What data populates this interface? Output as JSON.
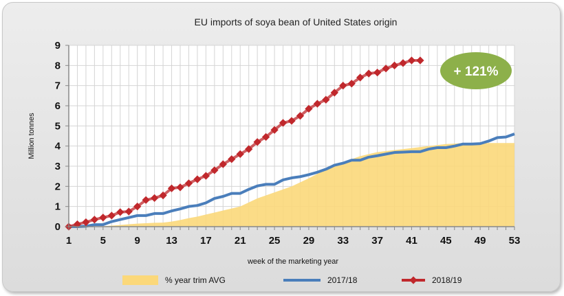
{
  "chart_data": {
    "type": "line",
    "title": "EU imports of soya bean of United States origin",
    "xlabel": "week of the marketing year",
    "ylabel": "Million tonnes",
    "xlim": [
      1,
      53
    ],
    "ylim": [
      0,
      9
    ],
    "x_ticks": [
      1,
      5,
      9,
      13,
      17,
      21,
      25,
      29,
      33,
      37,
      41,
      45,
      49,
      53
    ],
    "y_ticks": [
      0,
      1,
      2,
      3,
      4,
      5,
      6,
      7,
      8,
      9
    ],
    "grid": true,
    "legend_position": "bottom",
    "annotation": "+ 121%",
    "series": [
      {
        "name": "% year trim AVG",
        "kind": "area",
        "color": "#fbd87a",
        "values": [
          0,
          0,
          0,
          0.01,
          0.02,
          0.05,
          0.08,
          0.12,
          0.15,
          0.17,
          0.19,
          0.2,
          0.25,
          0.33,
          0.42,
          0.5,
          0.6,
          0.7,
          0.8,
          0.9,
          1.0,
          1.2,
          1.4,
          1.55,
          1.7,
          1.85,
          2.0,
          2.2,
          2.4,
          2.62,
          2.85,
          3.02,
          3.2,
          3.35,
          3.5,
          3.6,
          3.7,
          3.75,
          3.8,
          3.85,
          3.9,
          3.95,
          4.0,
          4.05,
          4.1,
          4.12,
          4.15,
          4.15,
          4.15,
          4.15,
          4.15,
          4.15,
          4.15
        ]
      },
      {
        "name": "2017/18",
        "kind": "line",
        "color": "#4a7ebb",
        "values": [
          0,
          0,
          0.02,
          0.1,
          0.1,
          0.25,
          0.35,
          0.45,
          0.55,
          0.55,
          0.65,
          0.65,
          0.78,
          0.88,
          1.0,
          1.05,
          1.18,
          1.4,
          1.5,
          1.65,
          1.65,
          1.85,
          2.02,
          2.1,
          2.1,
          2.32,
          2.42,
          2.48,
          2.58,
          2.7,
          2.85,
          3.05,
          3.15,
          3.3,
          3.3,
          3.45,
          3.52,
          3.6,
          3.68,
          3.7,
          3.72,
          3.72,
          3.85,
          3.92,
          3.92,
          4.0,
          4.1,
          4.1,
          4.12,
          4.25,
          4.42,
          4.45,
          4.6
        ]
      },
      {
        "name": "2018/19",
        "kind": "line-marker",
        "color": "#c0282c",
        "values": [
          0,
          0.12,
          0.22,
          0.35,
          0.45,
          0.55,
          0.72,
          0.75,
          1.0,
          1.32,
          1.42,
          1.55,
          1.9,
          1.95,
          2.15,
          2.35,
          2.52,
          2.8,
          3.1,
          3.35,
          3.6,
          3.85,
          4.2,
          4.45,
          4.8,
          5.15,
          5.25,
          5.5,
          5.85,
          6.1,
          6.3,
          6.65,
          7.0,
          7.1,
          7.4,
          7.6,
          7.65,
          7.85,
          8.0,
          8.12,
          8.25,
          8.25
        ]
      }
    ]
  },
  "colors": {
    "badge": "#8db04a",
    "grid": "#d4d4d4"
  }
}
